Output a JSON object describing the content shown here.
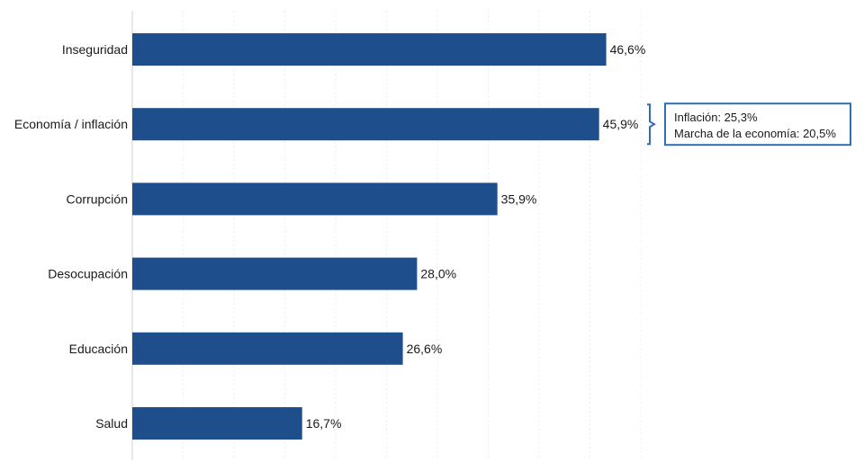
{
  "chart_data": {
    "type": "bar",
    "orientation": "horizontal",
    "title": "",
    "xlabel": "",
    "ylabel": "",
    "grid": true,
    "xlim": [
      0,
      50
    ],
    "bar_color": "#1f4e8c",
    "categories": [
      "Inseguridad",
      "Economía / inflación",
      "Corrupción",
      "Desocupación",
      "Educación",
      "Salud"
    ],
    "values": [
      46.6,
      45.9,
      35.9,
      28.0,
      26.6,
      16.7
    ],
    "value_labels": [
      "46,6%",
      "45,9%",
      "35,9%",
      "28,0%",
      "26,6%",
      "16,7%"
    ],
    "annotation": {
      "target_category": "Economía / inflación",
      "border_color": "#2f6db5",
      "lines": [
        "Inflación: 25,3%",
        "Marcha de la economía: 20,5%"
      ]
    }
  }
}
